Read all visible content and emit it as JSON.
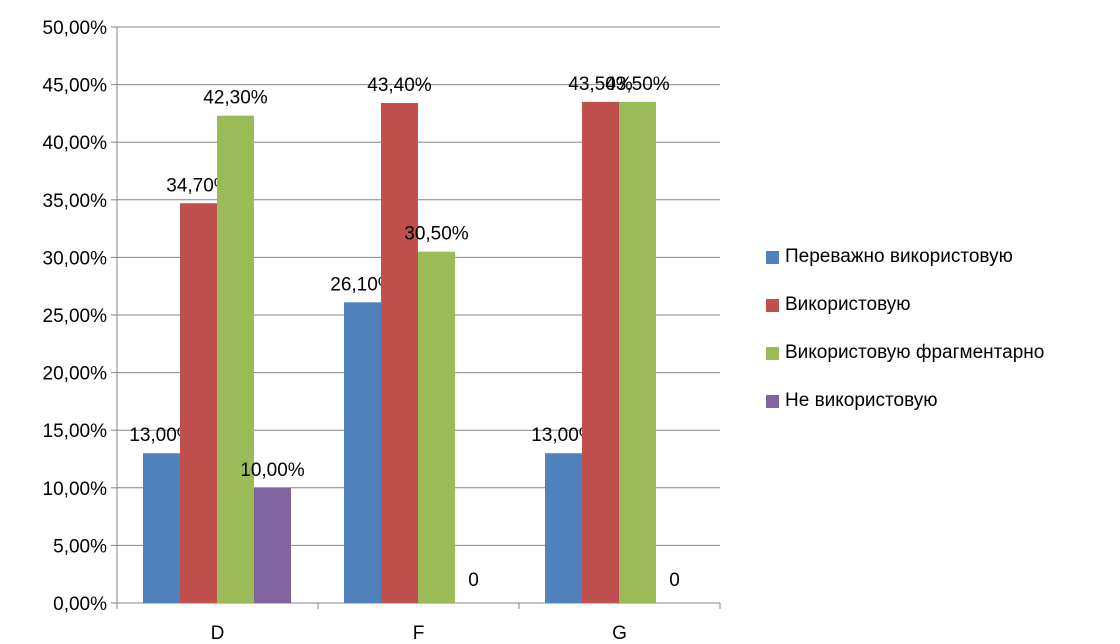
{
  "chart_data": {
    "type": "bar",
    "categories": [
      "D",
      "F",
      "G"
    ],
    "ylim": [
      0,
      0.5
    ],
    "y_ticks": [
      0,
      0.05,
      0.1,
      0.15,
      0.2,
      0.25,
      0.3,
      0.35,
      0.4,
      0.45,
      0.5
    ],
    "y_tick_labels": [
      "0,00%",
      "5,00%",
      "10,00%",
      "15,00%",
      "20,00%",
      "25,00%",
      "30,00%",
      "35,00%",
      "40,00%",
      "45,00%",
      "50,00%"
    ],
    "grid": true,
    "legend_position": "right",
    "series": [
      {
        "name": "Переважно використовую",
        "color": "#4F81BD",
        "values": [
          0.13,
          0.261,
          0.13
        ],
        "labels": [
          "13,00%",
          "26,10%",
          "13,00%"
        ]
      },
      {
        "name": "Використовую",
        "color": "#C0504D",
        "values": [
          0.347,
          0.434,
          0.435
        ],
        "labels": [
          "34,70%",
          "43,40%",
          "43,50%"
        ]
      },
      {
        "name": "Використовую фрагментарно",
        "color": "#9BBB59",
        "values": [
          0.423,
          0.305,
          0.435
        ],
        "labels": [
          "42,30%",
          "30,50%",
          "43,50%"
        ]
      },
      {
        "name": "Не використовую",
        "color": "#8064A2",
        "values": [
          0.1,
          0,
          0
        ],
        "labels": [
          "10,00%",
          "0",
          "0"
        ]
      }
    ]
  }
}
